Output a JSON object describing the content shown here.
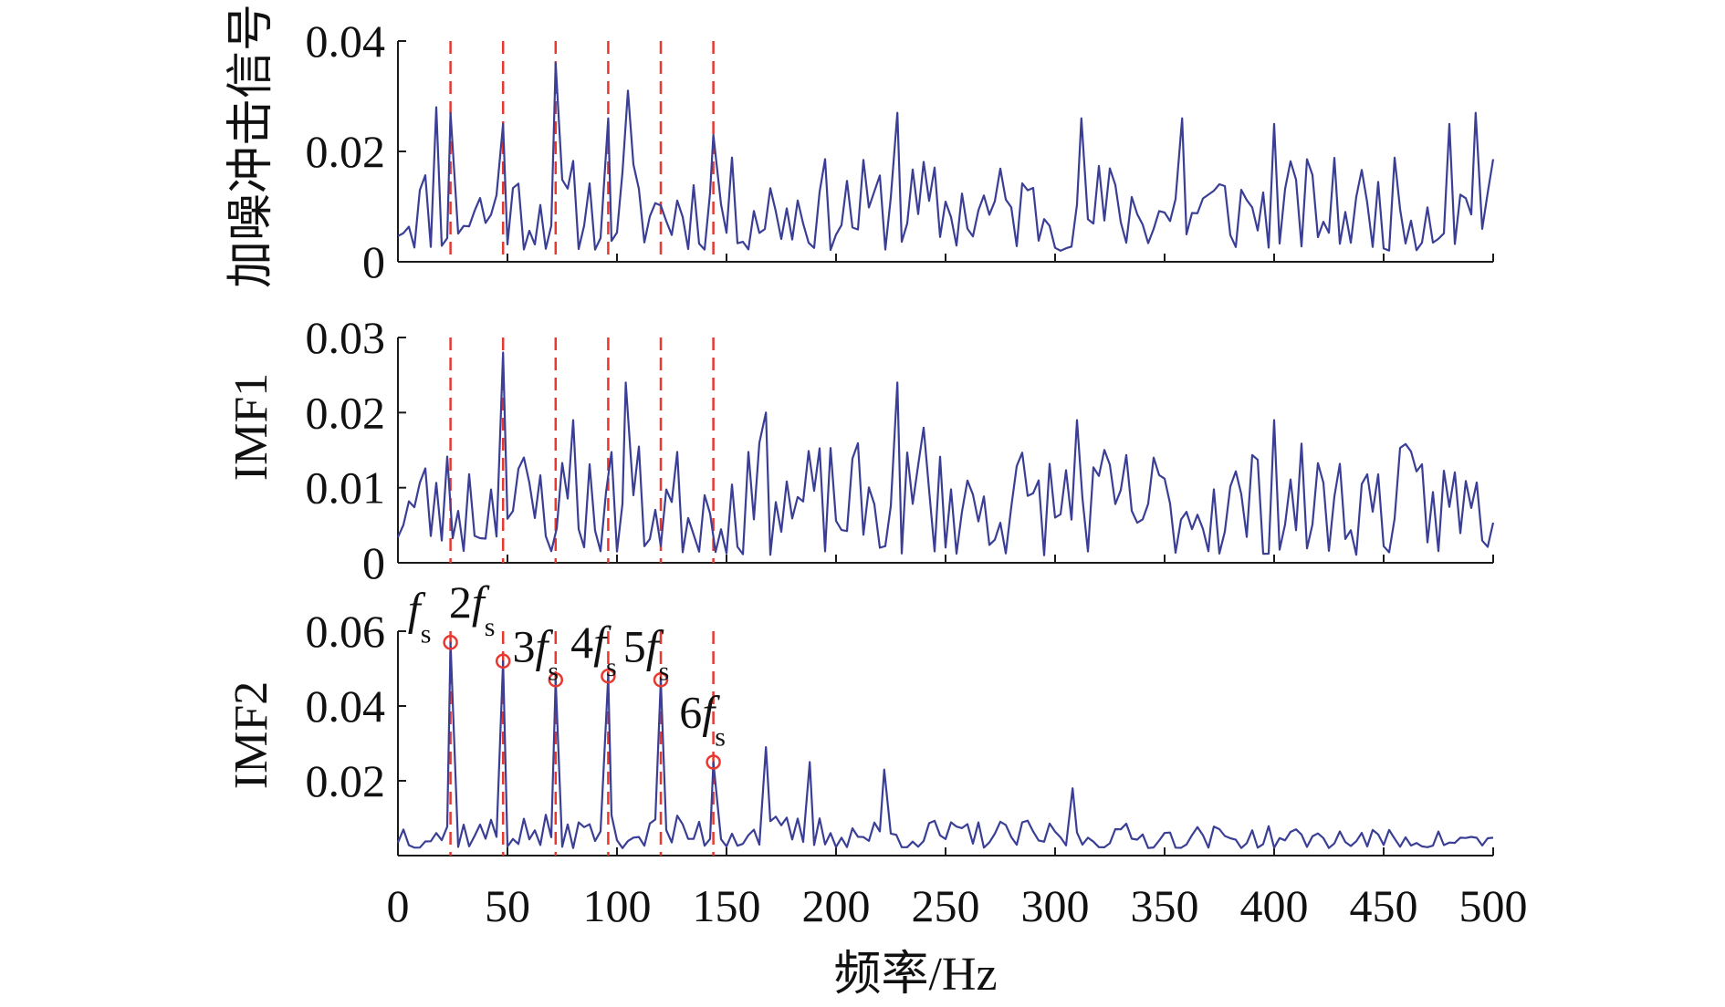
{
  "chart_data": {
    "type": "line",
    "xlabel": "频率/Hz",
    "xlim": [
      0,
      500
    ],
    "xticks": [
      "0",
      "50",
      "100",
      "150",
      "200",
      "250",
      "300",
      "350",
      "400",
      "450",
      "500"
    ],
    "xtick_values": [
      0,
      50,
      100,
      150,
      200,
      250,
      300,
      350,
      400,
      450,
      500
    ],
    "marker_frequencies": [
      24,
      48,
      72,
      96,
      120,
      144
    ],
    "colors": {
      "series": "#3a3f95",
      "markers": "#e8382f"
    },
    "panels": [
      {
        "id": "noisy",
        "ylabel": "加噪冲击信号",
        "ylim": [
          0,
          0.04
        ],
        "yticks": [
          "0",
          "0.02",
          "0.04"
        ],
        "ytick_values": [
          0,
          0.02,
          0.04
        ],
        "series": {
          "name": "加噪冲击信号",
          "x_start": 0,
          "x_step": 2.5,
          "peaks": [
            [
              17.5,
              0.028
            ],
            [
              24,
              0.027
            ],
            [
              48,
              0.025
            ],
            [
              72,
              0.036
            ],
            [
              96,
              0.026
            ],
            [
              105,
              0.031
            ],
            [
              144,
              0.023
            ],
            [
              228,
              0.027
            ],
            [
              312,
              0.026
            ],
            [
              358,
              0.026
            ],
            [
              400,
              0.025
            ],
            [
              480,
              0.025
            ],
            [
              492,
              0.027
            ]
          ],
          "noise_base": 0.002,
          "noise_amp": 0.017,
          "seed": 11
        }
      },
      {
        "id": "imf1",
        "ylabel": "IMF1",
        "ylim": [
          0,
          0.03
        ],
        "yticks": [
          "0",
          "0.01",
          "0.02",
          "0.03"
        ],
        "ytick_values": [
          0,
          0.01,
          0.02,
          0.03
        ],
        "series": {
          "name": "IMF1",
          "x_start": 0,
          "x_step": 2.5,
          "peaks": [
            [
              48,
              0.028
            ],
            [
              80,
              0.019
            ],
            [
              104,
              0.024
            ],
            [
              168,
              0.02
            ],
            [
              228,
              0.024
            ],
            [
              240,
              0.018
            ],
            [
              310,
              0.019
            ],
            [
              400,
              0.019
            ]
          ],
          "noise_base": 0.001,
          "noise_amp": 0.015,
          "seed": 23
        }
      },
      {
        "id": "imf2",
        "ylabel": "IMF2",
        "ylim": [
          0,
          0.06
        ],
        "yticks": [
          "0.02",
          "0.04",
          "0.06"
        ],
        "ytick_values": [
          0.02,
          0.04,
          0.06
        ],
        "series": {
          "name": "IMF2",
          "x_start": 0,
          "x_step": 2.5,
          "peaks": [
            [
              24,
              0.057
            ],
            [
              48,
              0.052
            ],
            [
              72,
              0.047
            ],
            [
              96,
              0.048
            ],
            [
              120,
              0.047
            ],
            [
              144,
              0.025
            ],
            [
              168,
              0.029
            ],
            [
              188,
              0.025
            ],
            [
              222,
              0.023
            ],
            [
              308,
              0.018
            ]
          ],
          "noise_base": 0.002,
          "noise_amp": 0.009,
          "decay": 0.5,
          "seed": 37
        },
        "annotations": [
          {
            "x": 24,
            "y": 0.057,
            "main": "f",
            "sub": "s"
          },
          {
            "x": 48,
            "y": 0.052,
            "main": "2f",
            "sub": "s"
          },
          {
            "x": 72,
            "y": 0.047,
            "main": "3f",
            "sub": "s"
          },
          {
            "x": 96,
            "y": 0.048,
            "main": "4f",
            "sub": "s"
          },
          {
            "x": 120,
            "y": 0.047,
            "main": "5f",
            "sub": "s"
          },
          {
            "x": 144,
            "y": 0.025,
            "main": "6f",
            "sub": "s"
          }
        ]
      }
    ]
  }
}
